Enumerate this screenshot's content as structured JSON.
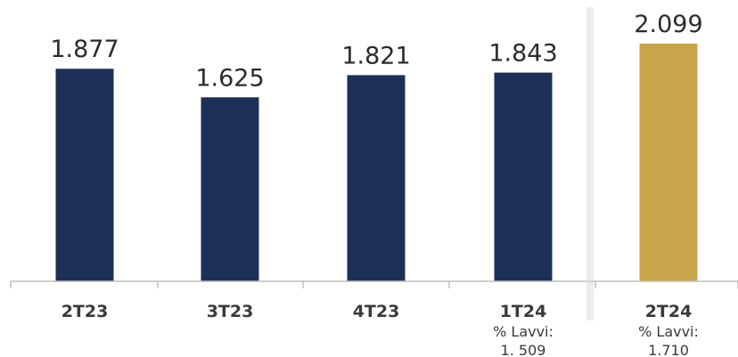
{
  "chart_data": {
    "type": "bar",
    "categories": [
      "2T23",
      "3T23",
      "4T23",
      "1T24",
      "2T24"
    ],
    "values": [
      1877,
      1625,
      1821,
      1843,
      2099
    ],
    "value_labels": [
      "1.877",
      "1.625",
      "1.821",
      "1.843",
      "2.099"
    ],
    "subtitles": [
      [],
      [],
      [],
      [
        "% Lavvi:",
        "1. 509"
      ],
      [
        "% Lavvi:",
        "1.710"
      ]
    ],
    "title": "",
    "xlabel": "",
    "ylabel": "",
    "ylim": [
      0,
      2099
    ],
    "grid": false,
    "colors": {
      "bar": "#1c3058",
      "highlight_bar": "#c8a54a",
      "highlight_index": 4,
      "axis": "#bfbfbf",
      "separator": "#d4d4d4"
    }
  }
}
